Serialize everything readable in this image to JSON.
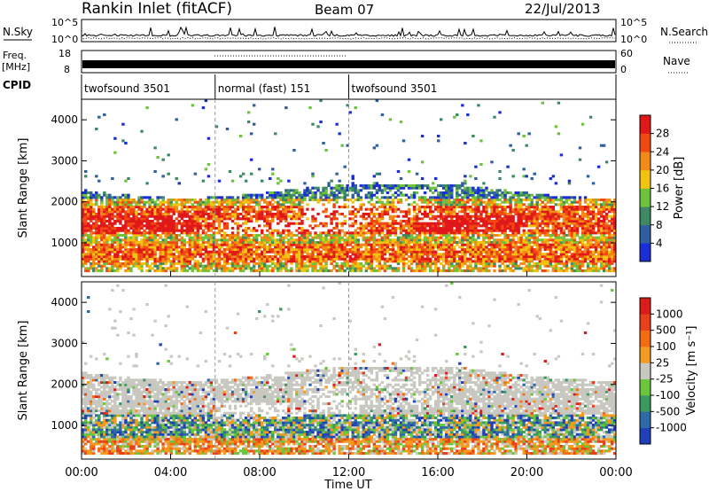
{
  "header": {
    "title": "Rankin Inlet (fitACF)",
    "beam": "Beam 07",
    "date": "22/Jul/2013"
  },
  "top_panels": {
    "nsky_label": "N.Sky",
    "nsky_ticks": [
      "10^5",
      "10^0"
    ],
    "nsearch_label": "N.Search",
    "nsearch_ticks": [
      "10^5",
      "10^0"
    ],
    "freq_label_line1": "Freq.",
    "freq_label_line2": "[MHz]",
    "freq_ticks": [
      "18",
      "8"
    ],
    "nave_label": "Nave",
    "nave_ticks": [
      "60",
      "0"
    ],
    "cpid_label": "CPID",
    "cpid_segments": [
      {
        "start_hour": 0,
        "end_hour": 6,
        "label": "twofsound 3501"
      },
      {
        "start_hour": 6,
        "end_hour": 12,
        "label": "normal (fast) 151"
      },
      {
        "start_hour": 12,
        "end_hour": 24,
        "label": "twofsound 3501"
      }
    ]
  },
  "time_axis": {
    "label": "Time UT",
    "tick_labels": [
      "00:00",
      "04:00",
      "08:00",
      "12:00",
      "16:00",
      "20:00",
      "00:00"
    ]
  },
  "chart_data": [
    {
      "type": "heatmap",
      "name": "power",
      "xlabel": "Time UT",
      "ylabel": "Slant Range [km]",
      "xlim_hours": [
        0,
        24
      ],
      "ylim_km": [
        180,
        4500
      ],
      "yticks": [
        1000,
        2000,
        3000,
        4000
      ],
      "colorbar": {
        "label": "Power [dB]",
        "tick_labels": [
          "4",
          "8",
          "12",
          "16",
          "20",
          "24",
          "28"
        ],
        "colors": [
          "#1a2dd6",
          "#2f5fa0",
          "#3d8a62",
          "#6ec23c",
          "#f2c40f",
          "#f38a17",
          "#f04a12",
          "#e0181a"
        ]
      }
    },
    {
      "type": "heatmap",
      "name": "velocity",
      "xlabel": "Time UT",
      "ylabel": "Slant Range [km]",
      "xlim_hours": [
        0,
        24
      ],
      "ylim_km": [
        180,
        4500
      ],
      "yticks": [
        1000,
        2000,
        3000,
        4000
      ],
      "colorbar": {
        "label": "Velocity [m s⁻¹]",
        "tick_labels": [
          "1000",
          "500",
          "100",
          "25",
          "-25",
          "-100",
          "-500",
          "-1000"
        ],
        "colors": [
          "#2040b8",
          "#2f6aa8",
          "#3c9a5c",
          "#6cc63c",
          "#c8c8c0",
          "#f59a20",
          "#f46b12",
          "#e8401a",
          "#dc1c1c"
        ]
      }
    }
  ]
}
